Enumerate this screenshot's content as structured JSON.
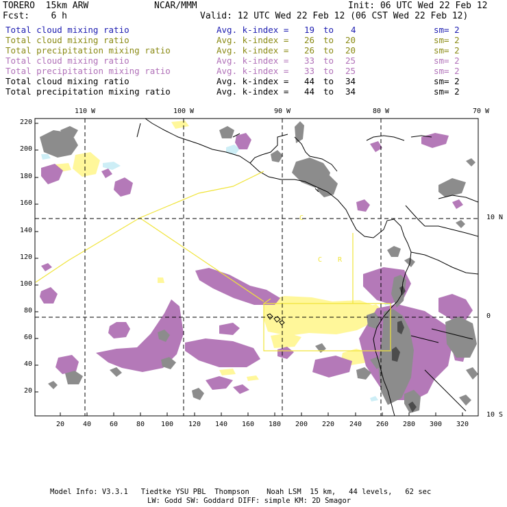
{
  "header": {
    "model": "TORERO  15km ARW",
    "org": "NCAR/MMM",
    "init": "Init: 06 UTC Wed 22 Feb 12",
    "fcst": "Fcst:    6 h",
    "valid": "Valid: 12 UTC Wed 22 Feb 12 (06 CST Wed 22 Feb 12)"
  },
  "legend": [
    {
      "field": "Total cloud mixing ratio",
      "kindex": "Avg. k-index =",
      "from": "19",
      "to_word": "to",
      "to": "4",
      "sm": "sm= 2",
      "color": "#1c1cb0"
    },
    {
      "field": "Total cloud mixing ratio",
      "kindex": "Avg. k-index =",
      "from": "26",
      "to_word": "to",
      "to": "20",
      "sm": "sm= 2",
      "color": "#8a8a14"
    },
    {
      "field": "Total precipitation mixing ratio",
      "kindex": "Avg. k-index =",
      "from": "26",
      "to_word": "to",
      "to": "20",
      "sm": "sm= 2",
      "color": "#8a8a14"
    },
    {
      "field": "Total cloud mixing ratio",
      "kindex": "Avg. k-index =",
      "from": "33",
      "to_word": "to",
      "to": "25",
      "sm": "sm= 2",
      "color": "#b070b8"
    },
    {
      "field": "Total precipitation mixing ratio",
      "kindex": "Avg. k-index =",
      "from": "33",
      "to_word": "to",
      "to": "25",
      "sm": "sm= 2",
      "color": "#b070b8"
    },
    {
      "field": "Total cloud mixing ratio",
      "kindex": "Avg. k-index =",
      "from": "44",
      "to_word": "to",
      "to": "34",
      "sm": "sm= 2",
      "color": "#000000"
    },
    {
      "field": "Total precipitation mixing ratio",
      "kindex": "Avg. k-index =",
      "from": "44",
      "to_word": "to",
      "to": "34",
      "sm": "sm= 2",
      "color": "#000000"
    }
  ],
  "axes": {
    "top_lon": [
      "110 W",
      "100 W",
      "90 W",
      "80 W",
      "70 W"
    ],
    "right_lat": [
      "10 N",
      "0",
      "10 S"
    ],
    "left_y": [
      "220",
      "200",
      "180",
      "160",
      "140",
      "120",
      "100",
      "80",
      "60",
      "40",
      "20"
    ],
    "bottom_x": [
      "20",
      "40",
      "60",
      "80",
      "100",
      "120",
      "140",
      "160",
      "180",
      "200",
      "220",
      "240",
      "260",
      "280",
      "300",
      "320"
    ]
  },
  "map_labels": {
    "country_1": "C",
    "country_2": "R"
  },
  "footer": {
    "line1": "Model Info: V3.3.1   Tiedtke YSU PBL  Thompson    Noah LSM  15 km,   44 levels,   62 sec",
    "line2": "LW: Godd SW: Goddard DIFF: simple KM: 2D Smagor"
  },
  "colors": {
    "gray_cloud": "#8c8c8c",
    "purple_precip": "#b479b8",
    "yellow_cloud": "#fff79a",
    "light_blue": "#cdeef6",
    "frame": "#000000",
    "box": "#f0e43a"
  }
}
